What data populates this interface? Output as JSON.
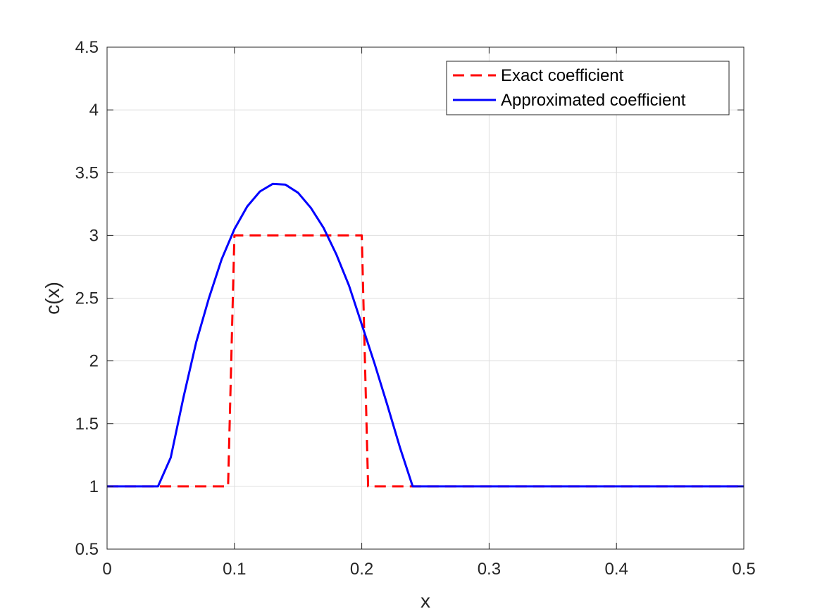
{
  "chart_data": {
    "type": "line",
    "title": "",
    "xlabel": "x",
    "ylabel": "c(x)",
    "xlim": [
      0,
      0.5
    ],
    "ylim": [
      0.5,
      4.5
    ],
    "xticks": [
      0,
      0.1,
      0.2,
      0.3,
      0.4,
      0.5
    ],
    "xtick_labels": [
      "0",
      "0.1",
      "0.2",
      "0.3",
      "0.4",
      "0.5"
    ],
    "yticks": [
      0.5,
      1,
      1.5,
      2,
      2.5,
      3,
      3.5,
      4,
      4.5
    ],
    "ytick_labels": [
      "0.5",
      "1",
      "1.5",
      "2",
      "2.5",
      "3",
      "3.5",
      "4",
      "4.5"
    ],
    "grid": true,
    "legend_position": "top-right",
    "series": [
      {
        "name": "Exact coefficient",
        "style": "dashed",
        "color": "#ff0000",
        "x": [
          0,
          0.095,
          0.1,
          0.2,
          0.205,
          0.5
        ],
        "y": [
          1,
          1,
          3,
          3,
          1,
          1
        ]
      },
      {
        "name": "Approximated coefficient",
        "style": "solid",
        "color": "#0000ff",
        "x": [
          0,
          0.04,
          0.05,
          0.06,
          0.07,
          0.08,
          0.09,
          0.1,
          0.11,
          0.12,
          0.13,
          0.14,
          0.15,
          0.16,
          0.17,
          0.18,
          0.19,
          0.2,
          0.21,
          0.22,
          0.23,
          0.24,
          0.25,
          0.3,
          0.35,
          0.4,
          0.45,
          0.5
        ],
        "y": [
          1,
          1,
          1.23,
          1.71,
          2.15,
          2.5,
          2.81,
          3.05,
          3.23,
          3.35,
          3.41,
          3.405,
          3.34,
          3.22,
          3.06,
          2.85,
          2.6,
          2.29,
          1.98,
          1.65,
          1.31,
          1.0,
          1.0,
          1.0,
          1.0,
          1.0,
          1.0,
          1.0
        ]
      }
    ]
  }
}
